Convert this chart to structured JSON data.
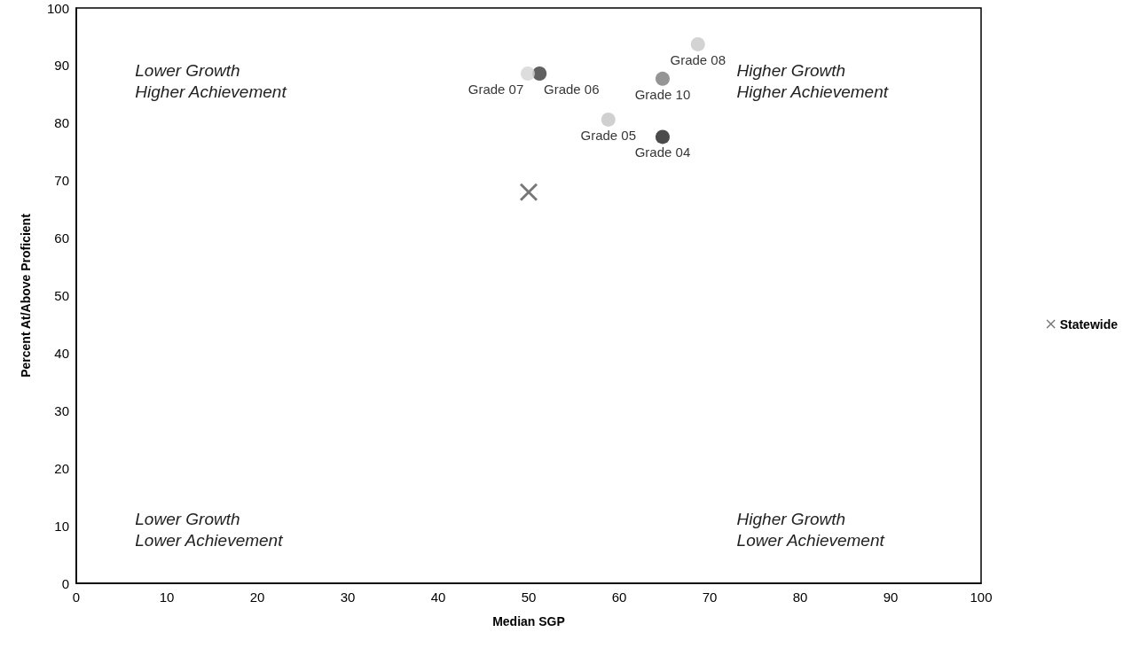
{
  "chart_data": {
    "type": "scatter",
    "xlabel": "Median SGP",
    "ylabel": "Percent At/Above Proficient",
    "xlim": [
      0,
      100
    ],
    "xticks": [
      0,
      10,
      20,
      30,
      40,
      50,
      60,
      70,
      80,
      90,
      100
    ],
    "ylim": [
      0,
      100
    ],
    "yticks": [
      0,
      10,
      20,
      30,
      40,
      50,
      60,
      70,
      80,
      90,
      100
    ],
    "grid": false,
    "legend": "right",
    "marker": "circle",
    "series": [
      {
        "name": "Grade 04",
        "color": "#1e1e1e",
        "x": [
          64.8
        ],
        "values": [
          77.6
        ]
      },
      {
        "name": "Grade 05",
        "color": "#c4c4c4",
        "x": [
          58.8
        ],
        "values": [
          80.6
        ]
      },
      {
        "name": "Grade 06",
        "color": "#3a3a3a",
        "x": [
          51.2
        ],
        "values": [
          88.6
        ]
      },
      {
        "name": "Grade 07",
        "color": "#d4d4d4",
        "x": [
          49.9
        ],
        "values": [
          88.6
        ]
      },
      {
        "name": "Grade 08",
        "color": "#c8c8c8",
        "x": [
          68.7
        ],
        "values": [
          93.7
        ]
      },
      {
        "name": "Grade 10",
        "color": "#7a7a7a",
        "x": [
          64.8
        ],
        "values": [
          87.7
        ]
      },
      {
        "name": "Statewide",
        "color": "#555555",
        "x": [
          50
        ],
        "values": [
          68
        ],
        "marker": "cross"
      }
    ],
    "annotations": [
      "Lower Growth\nHigher Achievement",
      "Higher Growth\nHigher Achievement",
      "Lower Growth\nLower Achievement",
      "Higher Growth\nLower Achievement"
    ]
  }
}
